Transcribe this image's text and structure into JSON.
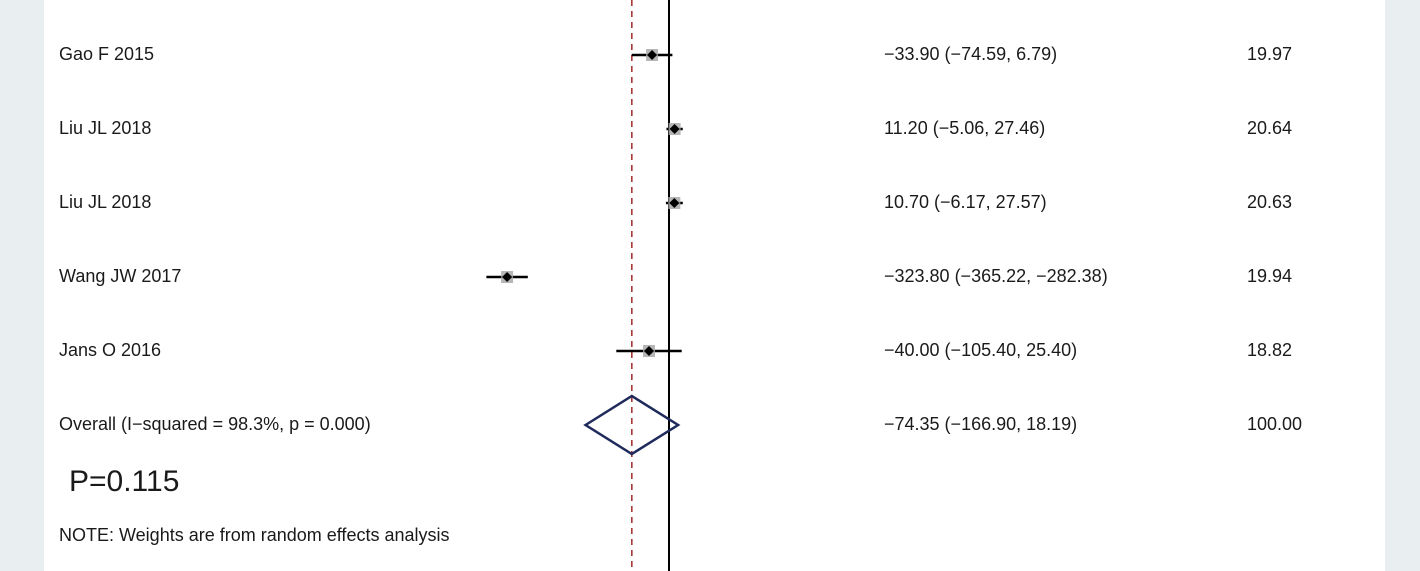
{
  "chart_data": {
    "type": "forest",
    "x_scale": {
      "ref_value": 0,
      "line_value": -74.35
    },
    "studies": [
      {
        "label": "Gao F 2015",
        "est": -33.9,
        "lo": -74.59,
        "hi": 6.79,
        "ci_text": "−33.90 (−74.59, 6.79)",
        "weight": "19.97"
      },
      {
        "label": "Liu JL 2018",
        "est": 11.2,
        "lo": -5.06,
        "hi": 27.46,
        "ci_text": "11.20 (−5.06, 27.46)",
        "weight": "20.64"
      },
      {
        "label": "Liu JL 2018",
        "est": 10.7,
        "lo": -6.17,
        "hi": 27.57,
        "ci_text": "10.70 (−6.17, 27.57)",
        "weight": "20.63"
      },
      {
        "label": "Wang JW 2017",
        "est": -323.8,
        "lo": -365.22,
        "hi": -282.38,
        "ci_text": "−323.80 (−365.22, −282.38)",
        "weight": "19.94"
      },
      {
        "label": "Jans O 2016",
        "est": -40.0,
        "lo": -105.4,
        "hi": 25.4,
        "ci_text": "−40.00 (−105.40, 25.40)",
        "weight": "18.82"
      }
    ],
    "overall": {
      "label": "Overall  (I−squared = 98.3%, p = 0.000)",
      "est": -74.35,
      "lo": -166.9,
      "hi": 18.19,
      "ci_text": "−74.35 (−166.90, 18.19)",
      "weight": "100.00"
    },
    "p_text": "P=0.115",
    "note": "NOTE: Weights are from random effects analysis",
    "colors": {
      "ref_line": "#000000",
      "overall_line": "#a0282a",
      "diamond": "#1f2a5c",
      "point": "#000000",
      "box": "#a9a9a9"
    }
  }
}
